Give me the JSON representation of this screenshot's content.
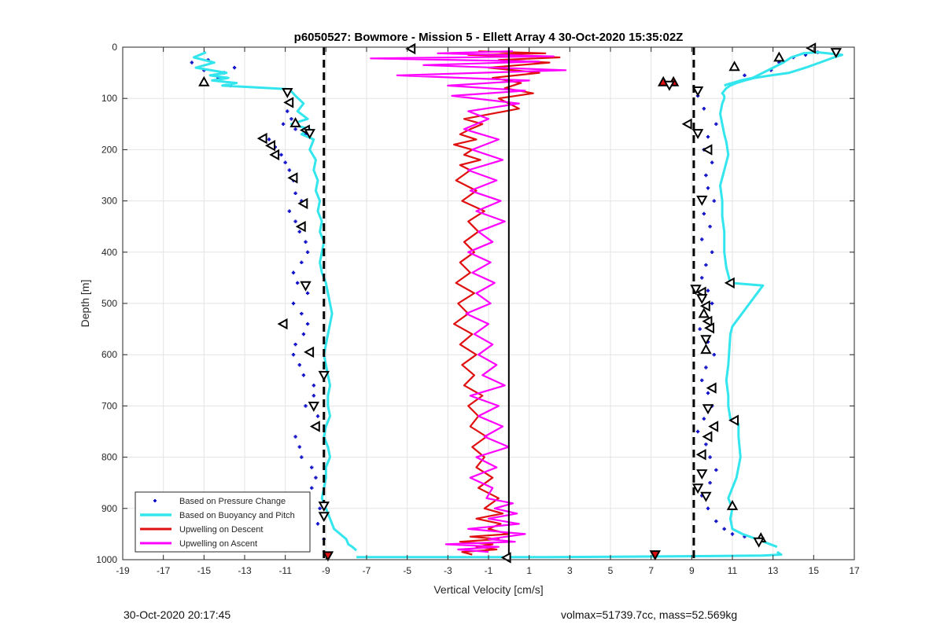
{
  "chart_data": {
    "type": "scatter",
    "title": "p6050527: Bowmore - Mission 5 - Ellett Array 4 30-Oct-2020 15:35:02Z",
    "xlabel": "Vertical Velocity [cm/s]",
    "ylabel": "Depth [m]",
    "xlim": [
      -19,
      17
    ],
    "ylim": [
      0,
      1000
    ],
    "y_reversed": true,
    "grid": true,
    "xticks": [
      -19,
      -17,
      -15,
      -13,
      -11,
      -9,
      -7,
      -5,
      -3,
      -1,
      1,
      3,
      5,
      7,
      9,
      11,
      13,
      15,
      17
    ],
    "yticks": [
      0,
      100,
      200,
      300,
      400,
      500,
      600,
      700,
      800,
      900,
      1000
    ],
    "legend_position": "bottom-left",
    "reference_lines": [
      {
        "x": -9.1,
        "style": "dashed",
        "color": "#000000"
      },
      {
        "x": 0.0,
        "style": "solid",
        "color": "#000000"
      },
      {
        "x": 9.1,
        "style": "dashed",
        "color": "#000000"
      }
    ],
    "series": [
      {
        "name": "Based on Pressure Change",
        "kind": "points",
        "color": "#1414c8",
        "groups": [
          {
            "x": [
              -15.6,
              -15.0,
              -14.3,
              -13.7,
              -14.8,
              -14.0,
              -13.5,
              -11.0,
              -10.8,
              -10.9,
              -10.7,
              -11.1,
              -10.5,
              -10.0,
              -11.8,
              -11.5,
              -11.2,
              -11.0,
              -10.8,
              -10.6,
              -10.5,
              -10.2,
              -10.8,
              -10.5,
              -10.3,
              -10.0,
              -9.9,
              -10.2,
              -10.6,
              -10.4,
              -9.9,
              -10.6,
              -10.2,
              -9.9,
              -10.1,
              -10.5,
              -10.6,
              -10.3,
              -10.1,
              -9.6,
              -9.6,
              -10.0,
              -9.4,
              -9.5,
              -10.5,
              -10.3,
              -10.2,
              -9.7,
              -9.5,
              -9.7,
              -10.1,
              -9.3,
              -9.4,
              -9.1
            ],
            "y": [
              30,
              45,
              60,
              75,
              25,
              50,
              40,
              85,
              105,
              125,
              140,
              150,
              160,
              170,
              180,
              195,
              210,
              225,
              240,
              260,
              285,
              300,
              320,
              340,
              360,
              380,
              400,
              420,
              440,
              460,
              480,
              500,
              520,
              540,
              560,
              580,
              600,
              620,
              640,
              660,
              680,
              700,
              720,
              740,
              760,
              780,
              800,
              820,
              840,
              860,
              880,
              900,
              930,
              960
            ]
          },
          {
            "x": [
              9.3,
              9.6,
              10.2,
              9.8,
              9.6,
              10.0,
              9.7,
              9.8,
              10.1,
              9.6,
              9.9,
              9.5,
              10.0,
              9.7,
              9.5,
              9.8,
              10.0,
              9.6,
              9.4,
              9.8,
              10.1,
              9.7,
              9.5,
              9.8,
              10.0,
              9.6,
              9.3,
              9.7,
              9.9,
              10.2,
              9.9,
              9.5,
              9.8,
              10.2,
              10.6,
              11.0,
              11.6,
              12.3,
              12.9,
              13.3,
              14.0,
              14.6,
              15.2,
              11.6
            ],
            "y": [
              95,
              120,
              150,
              175,
              200,
              225,
              250,
              275,
              300,
              325,
              350,
              375,
              400,
              425,
              450,
              475,
              500,
              525,
              550,
              575,
              600,
              625,
              650,
              675,
              700,
              725,
              750,
              775,
              800,
              825,
              850,
              875,
              900,
              925,
              940,
              950,
              955,
              960,
              45,
              30,
              20,
              15,
              10,
              55
            ]
          }
        ]
      },
      {
        "name": "Based on Buoyancy and Pitch",
        "kind": "line",
        "color": "#33e6ee",
        "segments": [
          {
            "x": [
              -14.9,
              -15.5,
              -14.5,
              -15.4,
              -13.9,
              -14.7,
              -13.8,
              -14.6,
              -13.4,
              -14.1,
              -10.8,
              -10.5,
              -10.1,
              -10.4,
              -9.9,
              -10.7,
              -9.8,
              -10.2,
              -9.6,
              -9.8,
              -9.5,
              -9.6,
              -9.4,
              -9.5,
              -9.3,
              -9.4,
              -9.2,
              -9.3,
              -9.1,
              -9.2,
              -9.3,
              -9.2,
              -9.0,
              -8.9,
              -8.8,
              -8.7,
              -8.8,
              -8.9,
              -9.0,
              -9.1,
              -9.0,
              -8.9,
              -8.8,
              -8.9,
              -8.9,
              -8.8,
              -9.0,
              -9.1,
              -8.9,
              -8.8,
              -9.0,
              -9.0,
              -9.1,
              -9.2,
              -8.6,
              -8.0,
              -7.9,
              -7.7,
              -7.5
            ],
            "y": [
              10,
              20,
              30,
              40,
              50,
              55,
              60,
              65,
              70,
              75,
              82,
              95,
              110,
              125,
              140,
              150,
              160,
              170,
              180,
              200,
              220,
              240,
              260,
              280,
              300,
              320,
              340,
              360,
              380,
              400,
              420,
              440,
              460,
              480,
              500,
              520,
              540,
              560,
              580,
              600,
              620,
              640,
              660,
              680,
              700,
              720,
              740,
              760,
              780,
              800,
              820,
              840,
              860,
              880,
              940,
              960,
              970,
              975,
              982
            ]
          },
          {
            "x": [
              -7.5,
              -3.0,
              2.0,
              6.0,
              10.0,
              12.5,
              13.4,
              13.2
            ],
            "y": [
              995,
              995,
              995,
              994,
              993,
              992,
              990,
              985
            ]
          },
          {
            "x": [
              13.2,
              12.2,
              11.5,
              11.0,
              10.9,
              11.0,
              10.8,
              11.0,
              11.2,
              11.4,
              11.3,
              11.3,
              10.9,
              10.8,
              10.8,
              10.7,
              10.8,
              10.9,
              11.0,
              12.5,
              10.9,
              10.7,
              10.6,
              10.6,
              10.5,
              10.5,
              10.4,
              10.6,
              10.8,
              10.7,
              10.6,
              10.5,
              10.4,
              10.5,
              10.6,
              10.6,
              10.5,
              10.6,
              10.7,
              10.9,
              11.2,
              11.6,
              12.1,
              12.9,
              13.8,
              14.6,
              15.3,
              16.0,
              16.4,
              15.2,
              14.5,
              13.9,
              13.5,
              13.0,
              12.5,
              12.0,
              11.4,
              11.0,
              10.8,
              10.6
            ],
            "y": [
              975,
              960,
              950,
              940,
              920,
              900,
              880,
              860,
              840,
              800,
              760,
              735,
              725,
              700,
              680,
              650,
              620,
              560,
              545,
              465,
              460,
              430,
              400,
              360,
              330,
              300,
              270,
              240,
              210,
              185,
              170,
              150,
              130,
              110,
              100,
              95,
              90,
              85,
              80,
              75,
              70,
              65,
              60,
              55,
              50,
              40,
              30,
              20,
              15,
              10,
              12,
              20,
              30,
              40,
              50,
              60,
              65,
              70,
              72,
              75
            ]
          }
        ]
      },
      {
        "name": "Upwelling on Descent",
        "kind": "line",
        "color": "#e01010",
        "x": [
          -1.5,
          1.8,
          -2.0,
          2.5,
          -0.5,
          2.0,
          -1.0,
          1.5,
          -0.8,
          0.6,
          -0.2,
          1.2,
          -0.5,
          0.5,
          -2.2,
          -1.3,
          -1.9,
          -2.4,
          -1.6,
          -2.7,
          -1.8,
          -2.2,
          -1.4,
          -2.4,
          -1.9,
          -2.6,
          -1.6,
          -2.3,
          -1.2,
          -2.0,
          -1.5,
          -2.2,
          -1.7,
          -2.4,
          -1.9,
          -2.6,
          -1.7,
          -2.5,
          -2.0,
          -2.7,
          -1.8,
          -2.4,
          -1.6,
          -2.3,
          -1.7,
          -2.2,
          -1.3,
          -2.0,
          -1.5,
          -1.9,
          -1.1,
          -1.8,
          -1.2,
          -1.6,
          -0.8,
          -1.5,
          -0.5,
          -1.2,
          -0.3,
          -1.6,
          -0.4,
          -1.0,
          0.0,
          -1.9,
          -0.5,
          -2.4,
          -0.8,
          -1.6,
          -0.6,
          -2.3,
          -1.8
        ],
        "y": [
          8,
          12,
          15,
          20,
          25,
          30,
          40,
          50,
          60,
          70,
          80,
          90,
          100,
          120,
          140,
          150,
          160,
          170,
          180,
          190,
          200,
          210,
          220,
          230,
          240,
          260,
          280,
          300,
          320,
          340,
          360,
          380,
          400,
          420,
          440,
          460,
          480,
          500,
          520,
          540,
          560,
          580,
          600,
          620,
          640,
          660,
          680,
          700,
          720,
          740,
          760,
          780,
          800,
          820,
          840,
          860,
          880,
          900,
          910,
          920,
          930,
          940,
          950,
          955,
          960,
          965,
          970,
          975,
          980,
          985,
          990
        ]
      },
      {
        "name": "Upwelling on Ascent",
        "kind": "line",
        "color": "#ff00ff",
        "x": [
          0.2,
          -3.5,
          2.2,
          -6.8,
          1.5,
          -4.2,
          2.8,
          -5.5,
          1.0,
          -3.0,
          0.8,
          -2.8,
          0.5,
          -2.0,
          -1.0,
          -2.2,
          -0.5,
          -1.8,
          -0.3,
          -2.0,
          -0.6,
          -1.9,
          -0.4,
          -1.6,
          -0.2,
          -1.5,
          -0.8,
          -2.0,
          -0.9,
          -1.8,
          -0.7,
          -1.6,
          -0.9,
          -2.1,
          -1.0,
          -1.7,
          -0.8,
          -1.5,
          -0.6,
          -1.3,
          -0.2,
          -1.9,
          -0.5,
          -1.5,
          -0.3,
          -1.2,
          0.0,
          -1.6,
          -0.6,
          -1.9,
          -0.8,
          -1.1,
          0.2,
          -0.7,
          0.4,
          -1.0,
          0.5,
          -2.0,
          0.8,
          -1.0,
          0.3,
          -3.1,
          -0.5,
          -2.5,
          -1.0
        ],
        "y": [
          8,
          12,
          18,
          22,
          28,
          35,
          45,
          55,
          65,
          75,
          85,
          95,
          110,
          125,
          140,
          160,
          180,
          200,
          220,
          240,
          260,
          280,
          300,
          320,
          340,
          360,
          380,
          400,
          420,
          440,
          460,
          480,
          500,
          520,
          540,
          560,
          580,
          600,
          620,
          640,
          660,
          680,
          700,
          720,
          740,
          760,
          780,
          800,
          820,
          840,
          860,
          880,
          890,
          900,
          910,
          920,
          930,
          940,
          950,
          960,
          965,
          970,
          975,
          980,
          985
        ]
      }
    ],
    "markers": [
      {
        "x": -15.0,
        "y": 68,
        "symbol": "up"
      },
      {
        "x": -10.9,
        "y": 88,
        "symbol": "down"
      },
      {
        "x": -10.8,
        "y": 108,
        "symbol": "left"
      },
      {
        "x": -10.5,
        "y": 148,
        "symbol": "up"
      },
      {
        "x": -10.0,
        "y": 162,
        "symbol": "left"
      },
      {
        "x": -9.8,
        "y": 168,
        "symbol": "down"
      },
      {
        "x": -12.1,
        "y": 178,
        "symbol": "left"
      },
      {
        "x": -11.7,
        "y": 192,
        "symbol": "left"
      },
      {
        "x": -11.5,
        "y": 210,
        "symbol": "left"
      },
      {
        "x": -10.6,
        "y": 255,
        "symbol": "left"
      },
      {
        "x": -10.1,
        "y": 305,
        "symbol": "left"
      },
      {
        "x": -10.2,
        "y": 350,
        "symbol": "left"
      },
      {
        "x": -10.0,
        "y": 465,
        "symbol": "down"
      },
      {
        "x": -11.1,
        "y": 540,
        "symbol": "left"
      },
      {
        "x": -9.8,
        "y": 595,
        "symbol": "left"
      },
      {
        "x": -9.1,
        "y": 640,
        "symbol": "down"
      },
      {
        "x": -9.6,
        "y": 700,
        "symbol": "down"
      },
      {
        "x": -9.5,
        "y": 740,
        "symbol": "left"
      },
      {
        "x": -9.1,
        "y": 895,
        "symbol": "down"
      },
      {
        "x": -9.1,
        "y": 915,
        "symbol": "down"
      },
      {
        "x": -10.1,
        "y": 938,
        "symbol": "left"
      },
      {
        "x": -10.0,
        "y": 968,
        "symbol": "left"
      },
      {
        "x": -8.9,
        "y": 992,
        "symbol": "down",
        "fill": "#e01010"
      },
      {
        "x": -4.8,
        "y": 3,
        "symbol": "left"
      },
      {
        "x": -0.1,
        "y": 996,
        "symbol": "left"
      },
      {
        "x": 7.2,
        "y": 990,
        "symbol": "down",
        "fill": "#e01010"
      },
      {
        "x": 7.6,
        "y": 68,
        "symbol": "up",
        "fill": "#e01010"
      },
      {
        "x": 8.1,
        "y": 68,
        "symbol": "up",
        "fill": "#e01010"
      },
      {
        "x": 7.9,
        "y": 74,
        "symbol": "down"
      },
      {
        "x": 9.3,
        "y": 85,
        "symbol": "down"
      },
      {
        "x": 8.8,
        "y": 150,
        "symbol": "left"
      },
      {
        "x": 9.3,
        "y": 168,
        "symbol": "down"
      },
      {
        "x": 9.8,
        "y": 200,
        "symbol": "left"
      },
      {
        "x": 9.5,
        "y": 298,
        "symbol": "down"
      },
      {
        "x": 10.9,
        "y": 460,
        "symbol": "left"
      },
      {
        "x": 9.2,
        "y": 472,
        "symbol": "down"
      },
      {
        "x": 9.5,
        "y": 478,
        "symbol": "left"
      },
      {
        "x": 9.5,
        "y": 490,
        "symbol": "down"
      },
      {
        "x": 9.7,
        "y": 505,
        "symbol": "left"
      },
      {
        "x": 9.6,
        "y": 520,
        "symbol": "up"
      },
      {
        "x": 9.8,
        "y": 535,
        "symbol": "left"
      },
      {
        "x": 9.9,
        "y": 548,
        "symbol": "left"
      },
      {
        "x": 9.7,
        "y": 570,
        "symbol": "down"
      },
      {
        "x": 9.7,
        "y": 590,
        "symbol": "up"
      },
      {
        "x": 10.0,
        "y": 665,
        "symbol": "left"
      },
      {
        "x": 9.8,
        "y": 705,
        "symbol": "down"
      },
      {
        "x": 11.1,
        "y": 728,
        "symbol": "left"
      },
      {
        "x": 10.1,
        "y": 740,
        "symbol": "left"
      },
      {
        "x": 9.8,
        "y": 760,
        "symbol": "left"
      },
      {
        "x": 9.5,
        "y": 795,
        "symbol": "left"
      },
      {
        "x": 9.5,
        "y": 832,
        "symbol": "down"
      },
      {
        "x": 9.3,
        "y": 860,
        "symbol": "down"
      },
      {
        "x": 9.7,
        "y": 876,
        "symbol": "down"
      },
      {
        "x": 11.0,
        "y": 895,
        "symbol": "up"
      },
      {
        "x": 12.4,
        "y": 958,
        "symbol": "up"
      },
      {
        "x": 12.3,
        "y": 965,
        "symbol": "down"
      },
      {
        "x": 11.1,
        "y": 38,
        "symbol": "up"
      },
      {
        "x": 13.3,
        "y": 20,
        "symbol": "up"
      },
      {
        "x": 14.9,
        "y": 2,
        "symbol": "left"
      },
      {
        "x": 16.1,
        "y": 10,
        "symbol": "down"
      }
    ]
  },
  "footer": {
    "timestamp": "30-Oct-2020 20:17:45",
    "vehicle_info": "volmax=51739.7cc, mass=52.569kg"
  }
}
